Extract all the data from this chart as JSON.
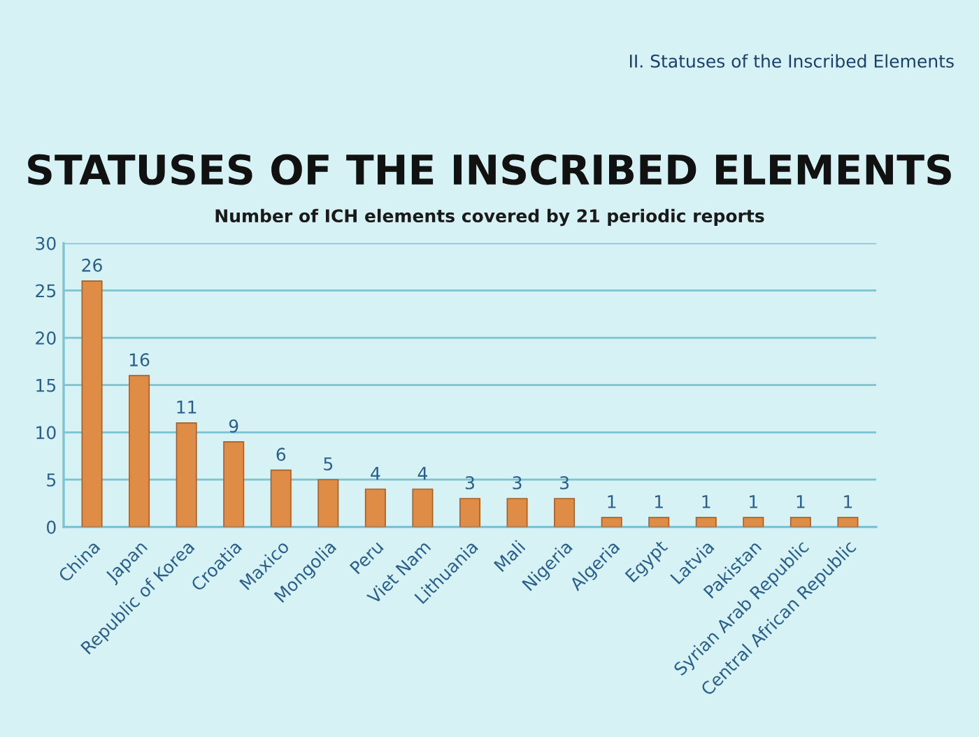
{
  "chart_data": {
    "type": "bar",
    "title": "STATUSES OF THE INSCRIBED ELEMENTS",
    "subtitle": "Number of ICH elements covered by 21 periodic reports",
    "annotations": [
      "II. Statuses of the Inscribed Elements"
    ],
    "categories": [
      "China",
      "Japan",
      "Republic of Korea",
      "Croatia",
      "Maxico",
      "Mongolia",
      "Peru",
      "Viet Nam",
      "Lithuania",
      "Mali",
      "Nigeria",
      "Algeria",
      "Egypt",
      "Latvia",
      "Pakistan",
      "Syrian Arab Republic",
      "Central African Republic"
    ],
    "values": [
      26,
      16,
      11,
      9,
      6,
      5,
      4,
      4,
      3,
      3,
      3,
      1,
      1,
      1,
      1,
      1,
      1
    ],
    "color": "#de8c46",
    "ylim": [
      0,
      30
    ],
    "yticks": [
      0,
      5,
      10,
      15,
      20,
      25,
      30
    ],
    "grid": "y",
    "data_labels": true
  }
}
